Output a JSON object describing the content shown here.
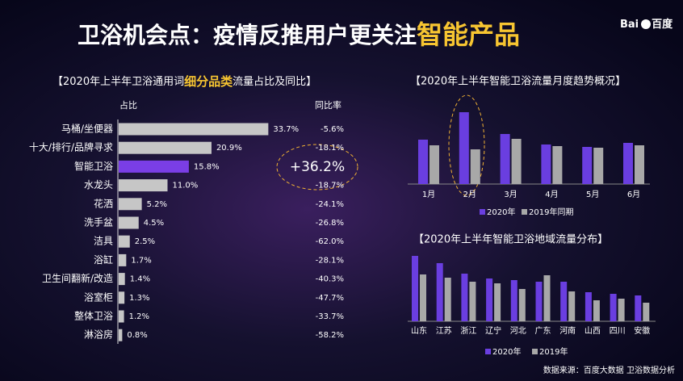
{
  "header": {
    "title": "卫浴机会点：疫情反推用户更关注",
    "title_highlight": "智能产品",
    "logo_left": "Bai",
    "logo_right": "百度"
  },
  "chart_data": [
    {
      "type": "bar",
      "orientation": "horizontal",
      "title_parts": [
        "【2020年上半年卫浴通用词",
        "细分品类",
        "流量占比及同比】"
      ],
      "x_label": "占比",
      "y2_label": "同比率",
      "categories": [
        "马桶/坐便器",
        "十大/排行/品牌寻求",
        "智能卫浴",
        "水龙头",
        "花洒",
        "洗手盆",
        "洁具",
        "浴缸",
        "卫生间翻新/改造",
        "浴室柜",
        "整体卫浴",
        "淋浴房"
      ],
      "colors": [
        "#c6c6c6",
        "#c6c6c6",
        "#7a3ee6",
        "#c6c6c6",
        "#c6c6c6",
        "#c6c6c6",
        "#c6c6c6",
        "#c6c6c6",
        "#c6c6c6",
        "#c6c6c6",
        "#c6c6c6",
        "#c6c6c6"
      ],
      "series": [
        {
          "name": "占比",
          "values": [
            33.7,
            20.9,
            15.8,
            11.0,
            5.2,
            4.5,
            2.5,
            1.7,
            1.4,
            1.3,
            1.2,
            0.8
          ],
          "value_labels": [
            "33.7%",
            "20.9%",
            "15.8%",
            "11.0%",
            "5.2%",
            "4.5%",
            "2.5%",
            "1.7%",
            "1.4%",
            "1.3%",
            "1.2%",
            "0.8%"
          ]
        },
        {
          "name": "同比率",
          "values": [
            -5.6,
            -18.1,
            36.2,
            -18.7,
            -24.1,
            -26.8,
            -62.0,
            -28.1,
            -40.3,
            -47.7,
            -33.7,
            -58.2
          ],
          "value_labels": [
            "-5.6%",
            "-18.1%",
            "+36.2%",
            "-18.7%",
            "-24.1%",
            "-26.8%",
            "-62.0%",
            "-28.1%",
            "-40.3%",
            "-47.7%",
            "-33.7%",
            "-58.2%"
          ]
        }
      ]
    },
    {
      "type": "bar",
      "orientation": "vertical",
      "title": "【2020年上半年智能卫浴流量月度趋势概况】",
      "categories": [
        "1月",
        "2月",
        "3月",
        "4月",
        "5月",
        "6月"
      ],
      "series": [
        {
          "name": "2020年",
          "color": "#6a3ee0",
          "values": [
            55,
            89,
            62,
            49,
            46,
            51
          ]
        },
        {
          "name": "2019年同期",
          "color": "#a8a8a8",
          "values": [
            48,
            43,
            56,
            47,
            45,
            48
          ]
        }
      ]
    },
    {
      "type": "bar",
      "orientation": "vertical",
      "title": "【2020年上半年智能卫浴地域流量分布】",
      "categories": [
        "山东",
        "江苏",
        "浙江",
        "辽宁",
        "河北",
        "广东",
        "河南",
        "山西",
        "四川",
        "安徽"
      ],
      "series": [
        {
          "name": "2020年",
          "color": "#6a3ee0",
          "values": [
            81,
            72,
            59,
            53,
            51,
            49,
            49,
            36,
            34,
            32
          ]
        },
        {
          "name": "2019年",
          "color": "#a8a8a8",
          "values": [
            58,
            54,
            49,
            47,
            40,
            57,
            37,
            26,
            28,
            23
          ]
        }
      ]
    }
  ],
  "footer": "数据来源：百度大数据 卫浴数据分析"
}
